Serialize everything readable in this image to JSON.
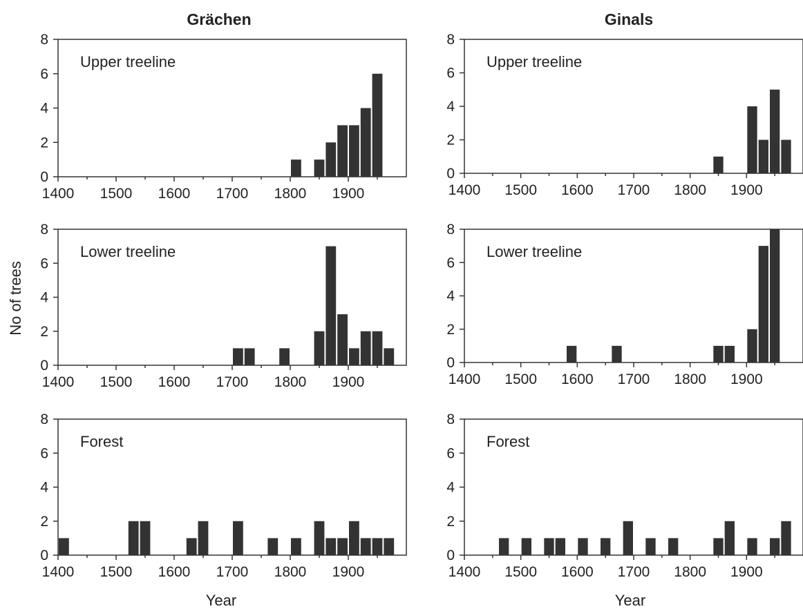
{
  "titles": {
    "left": "Grächen",
    "right": "Ginals"
  },
  "axis_labels": {
    "x": "Year",
    "y": "No of trees"
  },
  "chart_data": [
    {
      "type": "bar",
      "site": "Grächen",
      "panel": "Upper treeline",
      "xlim": [
        1400,
        2000
      ],
      "ylim": [
        0,
        8
      ],
      "xticks": [
        1400,
        1500,
        1600,
        1700,
        1800,
        1900
      ],
      "yticks": [
        0,
        2,
        4,
        6,
        8
      ],
      "bin_width": 20,
      "bins": [
        [
          1800,
          1
        ],
        [
          1840,
          1
        ],
        [
          1860,
          2
        ],
        [
          1880,
          3
        ],
        [
          1900,
          3
        ],
        [
          1920,
          4
        ],
        [
          1940,
          6
        ]
      ],
      "bar_color": "#333333"
    },
    {
      "type": "bar",
      "site": "Ginals",
      "panel": "Upper treeline",
      "xlim": [
        1400,
        2000
      ],
      "ylim": [
        0,
        8
      ],
      "xticks": [
        1400,
        1500,
        1600,
        1700,
        1800,
        1900
      ],
      "yticks": [
        0,
        2,
        4,
        6,
        8
      ],
      "bin_width": 20,
      "bins": [
        [
          1840,
          1
        ],
        [
          1900,
          4
        ],
        [
          1920,
          2
        ],
        [
          1940,
          5
        ],
        [
          1960,
          2
        ]
      ],
      "bar_color": "#333333"
    },
    {
      "type": "bar",
      "site": "Grächen",
      "panel": "Lower treeline",
      "xlim": [
        1400,
        2000
      ],
      "ylim": [
        0,
        8
      ],
      "xticks": [
        1400,
        1500,
        1600,
        1700,
        1800,
        1900
      ],
      "yticks": [
        0,
        2,
        4,
        6,
        8
      ],
      "bin_width": 20,
      "bins": [
        [
          1700,
          1
        ],
        [
          1720,
          1
        ],
        [
          1780,
          1
        ],
        [
          1840,
          2
        ],
        [
          1860,
          7
        ],
        [
          1880,
          3
        ],
        [
          1900,
          1
        ],
        [
          1920,
          2
        ],
        [
          1940,
          2
        ],
        [
          1960,
          1
        ]
      ],
      "bar_color": "#333333"
    },
    {
      "type": "bar",
      "site": "Ginals",
      "panel": "Lower treeline",
      "xlim": [
        1400,
        2000
      ],
      "ylim": [
        0,
        8
      ],
      "xticks": [
        1400,
        1500,
        1600,
        1700,
        1800,
        1900
      ],
      "yticks": [
        0,
        2,
        4,
        6,
        8
      ],
      "bin_width": 20,
      "bins": [
        [
          1580,
          1
        ],
        [
          1660,
          1
        ],
        [
          1840,
          1
        ],
        [
          1860,
          1
        ],
        [
          1900,
          2
        ],
        [
          1920,
          7
        ],
        [
          1940,
          8
        ]
      ],
      "bar_color": "#333333"
    },
    {
      "type": "bar",
      "site": "Grächen",
      "panel": "Forest",
      "xlim": [
        1400,
        2000
      ],
      "ylim": [
        0,
        8
      ],
      "xticks": [
        1400,
        1500,
        1600,
        1700,
        1800,
        1900
      ],
      "yticks": [
        0,
        2,
        4,
        6,
        8
      ],
      "bin_width": 20,
      "bins": [
        [
          1400,
          1
        ],
        [
          1520,
          2
        ],
        [
          1540,
          2
        ],
        [
          1620,
          1
        ],
        [
          1640,
          2
        ],
        [
          1700,
          2
        ],
        [
          1760,
          1
        ],
        [
          1800,
          1
        ],
        [
          1840,
          2
        ],
        [
          1860,
          1
        ],
        [
          1880,
          1
        ],
        [
          1900,
          2
        ],
        [
          1920,
          1
        ],
        [
          1940,
          1
        ],
        [
          1960,
          1
        ]
      ],
      "bar_color": "#333333"
    },
    {
      "type": "bar",
      "site": "Ginals",
      "panel": "Forest",
      "xlim": [
        1400,
        2000
      ],
      "ylim": [
        0,
        8
      ],
      "xticks": [
        1400,
        1500,
        1600,
        1700,
        1800,
        1900
      ],
      "yticks": [
        0,
        2,
        4,
        6,
        8
      ],
      "bin_width": 20,
      "bins": [
        [
          1460,
          1
        ],
        [
          1500,
          1
        ],
        [
          1540,
          1
        ],
        [
          1560,
          1
        ],
        [
          1600,
          1
        ],
        [
          1640,
          1
        ],
        [
          1680,
          2
        ],
        [
          1720,
          1
        ],
        [
          1760,
          1
        ],
        [
          1840,
          1
        ],
        [
          1860,
          2
        ],
        [
          1900,
          1
        ],
        [
          1940,
          1
        ],
        [
          1960,
          2
        ]
      ],
      "bar_color": "#333333"
    }
  ]
}
